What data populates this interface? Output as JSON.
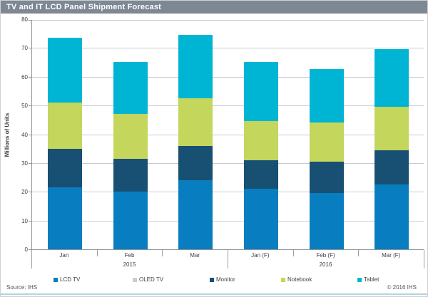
{
  "header": {
    "title": "TV and IT LCD Panel Shipment Forecast"
  },
  "footer": {
    "source": "Source: IHS",
    "copyright": "© 2016 IHS"
  },
  "colors": {
    "titlebar_bg": "#7d8893",
    "gridline": "#c7cbcf",
    "axis": "#8f969c",
    "bottom_accent": "#b5d2e2"
  },
  "chart_data": {
    "type": "bar",
    "stacked": true,
    "title": "TV and IT LCD Panel Shipment Forecast",
    "ylabel": "Millions of Units",
    "xlabel": "",
    "ylim": [
      0,
      80
    ],
    "ytick_step": 10,
    "grid": true,
    "legend_position": "bottom",
    "categories": [
      "Jan",
      "Feb",
      "Mar",
      "Jan (F)",
      "Feb (F)",
      "Mar (F)"
    ],
    "groups": [
      {
        "label": "2015",
        "start": 0,
        "end": 2
      },
      {
        "label": "2016",
        "start": 3,
        "end": 5
      }
    ],
    "series": [
      {
        "name": "LCD TV",
        "color": "#087ec1",
        "values": [
          21.5,
          20.0,
          24.0,
          21.0,
          19.5,
          22.5
        ]
      },
      {
        "name": "OLED TV",
        "color": "#c9ced3",
        "values": [
          0,
          0,
          0,
          0,
          0,
          0
        ]
      },
      {
        "name": "Monitor",
        "color": "#185074",
        "values": [
          13.5,
          11.5,
          12.0,
          10.0,
          11.0,
          12.0
        ]
      },
      {
        "name": "Notebook",
        "color": "#c4d65b",
        "values": [
          16.0,
          15.5,
          16.5,
          13.5,
          13.5,
          15.0
        ]
      },
      {
        "name": "Tablet",
        "color": "#00b5d3",
        "values": [
          22.5,
          18.0,
          22.0,
          20.5,
          18.5,
          20.0
        ]
      }
    ],
    "totals": [
      73.5,
      65.0,
      74.5,
      65.0,
      62.5,
      69.5
    ]
  }
}
